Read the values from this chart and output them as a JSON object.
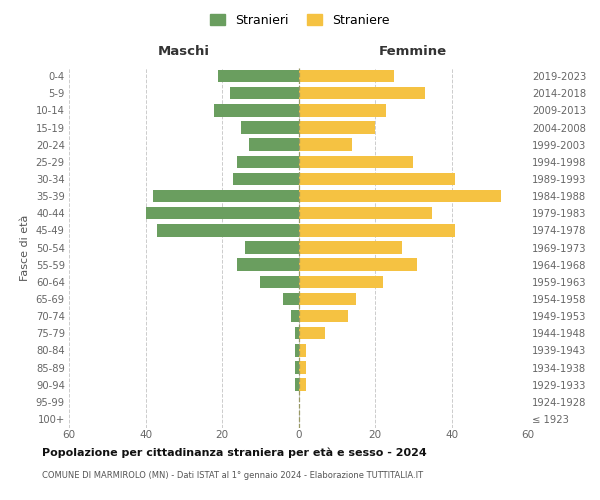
{
  "age_groups": [
    "100+",
    "95-99",
    "90-94",
    "85-89",
    "80-84",
    "75-79",
    "70-74",
    "65-69",
    "60-64",
    "55-59",
    "50-54",
    "45-49",
    "40-44",
    "35-39",
    "30-34",
    "25-29",
    "20-24",
    "15-19",
    "10-14",
    "5-9",
    "0-4"
  ],
  "birth_years": [
    "≤ 1923",
    "1924-1928",
    "1929-1933",
    "1934-1938",
    "1939-1943",
    "1944-1948",
    "1949-1953",
    "1954-1958",
    "1959-1963",
    "1964-1968",
    "1969-1973",
    "1974-1978",
    "1979-1983",
    "1984-1988",
    "1989-1993",
    "1994-1998",
    "1999-2003",
    "2004-2008",
    "2009-2013",
    "2014-2018",
    "2019-2023"
  ],
  "maschi": [
    0,
    0,
    1,
    1,
    1,
    1,
    2,
    4,
    10,
    16,
    14,
    37,
    40,
    38,
    17,
    16,
    13,
    15,
    22,
    18,
    21
  ],
  "femmine": [
    0,
    0,
    2,
    2,
    2,
    7,
    13,
    15,
    22,
    31,
    27,
    41,
    35,
    53,
    41,
    30,
    14,
    20,
    23,
    33,
    25
  ],
  "color_maschi": "#6a9e5f",
  "color_femmine": "#f5c242",
  "title": "Popolazione per cittadinanza straniera per età e sesso - 2024",
  "subtitle": "COMUNE DI MARMIROLO (MN) - Dati ISTAT al 1° gennaio 2024 - Elaborazione TUTTITALIA.IT",
  "label_maschi_header": "Maschi",
  "label_femmine_header": "Femmine",
  "ylabel_left": "Fasce di età",
  "legend_maschi": "Stranieri",
  "legend_femmine": "Straniere",
  "xlim": 60,
  "background_color": "#ffffff"
}
